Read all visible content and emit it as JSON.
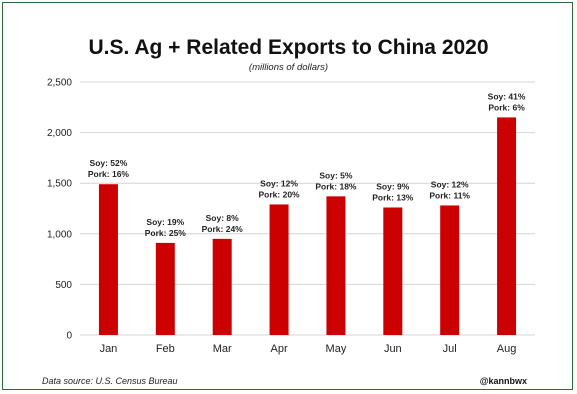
{
  "chart_data": {
    "type": "bar",
    "title": "U.S. Ag + Related Exports to China 2020",
    "subtitle": "(millions of dollars)",
    "xlabel": "",
    "ylabel": "",
    "categories": [
      "Jan",
      "Feb",
      "Mar",
      "Apr",
      "May",
      "Jun",
      "Jul",
      "Aug"
    ],
    "values": [
      1490,
      910,
      950,
      1290,
      1370,
      1260,
      1280,
      2150
    ],
    "ylim": [
      0,
      2500
    ],
    "yticks": [
      0,
      500,
      1000,
      1500,
      2000,
      2500
    ],
    "ytick_labels": [
      "0",
      "500",
      "1,000",
      "1,500",
      "2,000",
      "2,500"
    ],
    "annotations": [
      {
        "soy": "Soy: 52%",
        "pork": "Pork: 16%"
      },
      {
        "soy": "Soy: 19%",
        "pork": "Pork: 25%"
      },
      {
        "soy": "Soy: 8%",
        "pork": "Pork: 24%"
      },
      {
        "soy": "Soy: 12%",
        "pork": "Pork: 20%"
      },
      {
        "soy": "Soy: 5%",
        "pork": "Pork: 18%"
      },
      {
        "soy": "Soy: 9%",
        "pork": "Pork: 13%"
      },
      {
        "soy": "Soy: 12%",
        "pork": "Pork: 11%"
      },
      {
        "soy": "Soy: 41%",
        "pork": "Pork: 6%"
      }
    ],
    "grid": true,
    "bar_color": "#cc0000"
  },
  "footer": {
    "source": "Data source: U.S. Census Bureau",
    "handle": "@kannbwx"
  }
}
